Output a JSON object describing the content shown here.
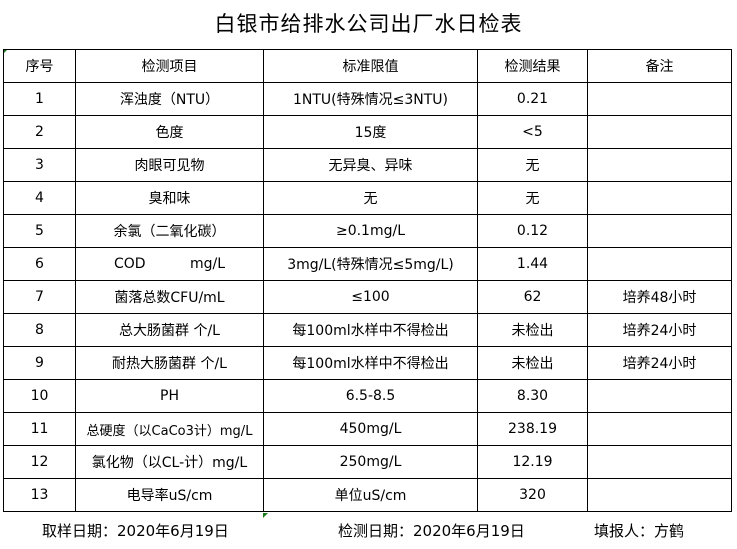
{
  "title": "白银市给排水公司出厂水日检表",
  "headers": [
    "序号",
    "检测项目",
    "标准限值",
    "检测结果",
    "备注"
  ],
  "rows": [
    [
      "1",
      "浑浊度（NTU）",
      "1NTU(特殊情况≤3NTU)",
      "0.21",
      ""
    ],
    [
      "2",
      "色度",
      "15度",
      "<5",
      ""
    ],
    [
      "3",
      "肉眼可见物",
      "无异臭、异味",
      "无",
      ""
    ],
    [
      "4",
      "臭和味",
      "无",
      "无",
      ""
    ],
    [
      "5",
      "余氯（二氧化碳）",
      "≥0.1mg/L",
      "0.12",
      ""
    ],
    [
      "6",
      "COD          mg/L",
      "3mg/L(特殊情况≤5mg/L)",
      "1.44",
      ""
    ],
    [
      "7",
      "菌落总数CFU/mL",
      "≤100",
      "62",
      "培养48小时"
    ],
    [
      "8",
      "总大肠菌群 个/L",
      "每100ml水样中不得检出",
      "未检出",
      "培养24小时"
    ],
    [
      "9",
      "耐热大肠菌群 个/L",
      "每100ml水样中不得检出",
      "未检出",
      "培养24小时"
    ],
    [
      "10",
      "PH",
      "6.5-8.5",
      "8.30",
      ""
    ],
    [
      "11",
      "总硬度（以CaCo3计）mg/L",
      "450mg/L",
      "238.19",
      ""
    ],
    [
      "12",
      "氯化物（以CL-计）mg/L",
      "250mg/L",
      "12.19",
      ""
    ],
    [
      "13",
      "电导率uS/cm",
      "单位uS/cm",
      "320",
      ""
    ]
  ],
  "footer": {
    "sampling_date": "取样日期：2020年6月19日",
    "test_date": "检测日期：2020年6月19日",
    "reporter": "填报人：方鹤"
  }
}
